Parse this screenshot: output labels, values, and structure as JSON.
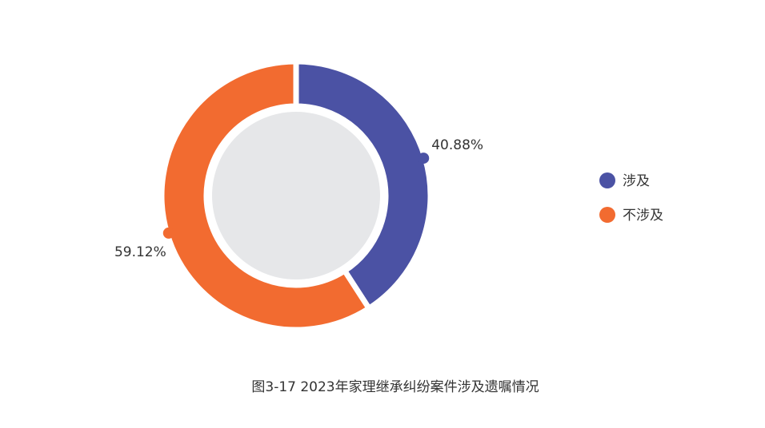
{
  "chart_data": {
    "type": "donut",
    "title": "图3-17  2023年家理继承纠纷案件涉及遗嘱情况",
    "categories": [
      "涉及",
      "不涉及"
    ],
    "values": [
      40.88,
      59.12
    ],
    "value_labels": [
      "40.88%",
      "59.12%"
    ],
    "colors": [
      "#4b52a4",
      "#f26b30"
    ]
  }
}
